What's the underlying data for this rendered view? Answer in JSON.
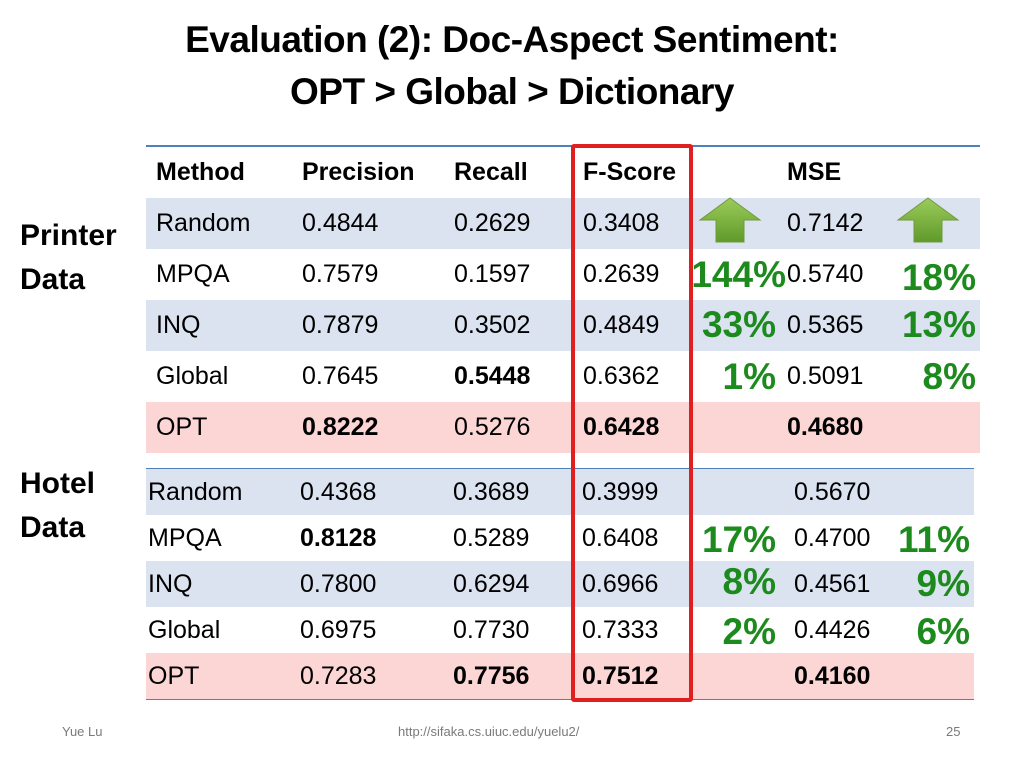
{
  "title": {
    "line1": "Evaluation (2): Doc-Aspect Sentiment:",
    "line2": "OPT > Global > Dictionary"
  },
  "side_labels": {
    "printer_line1": "Printer",
    "printer_line2": "Data",
    "hotel_line1": "Hotel",
    "hotel_line2": "Data"
  },
  "printer_table": {
    "headers": [
      "Method",
      "Precision",
      "Recall",
      "F-Score",
      "MSE"
    ],
    "rows": [
      {
        "method": "Random",
        "precision": "0.4844",
        "recall": "0.2629",
        "fscore": "0.3408",
        "mse": "0.7142"
      },
      {
        "method": "MPQA",
        "precision": "0.7579",
        "recall": "0.1597",
        "fscore": "0.2639",
        "mse": "0.5740"
      },
      {
        "method": "INQ",
        "precision": "0.7879",
        "recall": "0.3502",
        "fscore": "0.4849",
        "mse": "0.5365"
      },
      {
        "method": "Global",
        "precision": "0.7645",
        "recall": "0.5448",
        "fscore": "0.6362",
        "mse": "0.5091"
      },
      {
        "method": "OPT",
        "precision": "0.8222",
        "recall": "0.5276",
        "fscore": "0.6428",
        "mse": "0.4680"
      }
    ],
    "fscore_gains": [
      "144%",
      "33%",
      "1%"
    ],
    "mse_gains": [
      "18%",
      "13%",
      "8%"
    ]
  },
  "hotel_table": {
    "rows": [
      {
        "method": "Random",
        "precision": "0.4368",
        "recall": "0.3689",
        "fscore": "0.3999",
        "mse": "0.5670"
      },
      {
        "method": "MPQA",
        "precision": "0.8128",
        "recall": "0.5289",
        "fscore": "0.6408",
        "mse": "0.4700"
      },
      {
        "method": "INQ",
        "precision": "0.7800",
        "recall": "0.6294",
        "fscore": "0.6966",
        "mse": "0.4561"
      },
      {
        "method": "Global",
        "precision": "0.6975",
        "recall": "0.7730",
        "fscore": "0.7333",
        "mse": "0.4426"
      },
      {
        "method": "OPT",
        "precision": "0.7283",
        "recall": "0.7756",
        "fscore": "0.7512",
        "mse": "0.4160"
      }
    ],
    "fscore_gains": [
      "17%",
      "8%",
      "2%"
    ],
    "mse_gains": [
      "11%",
      "9%",
      "6%"
    ]
  },
  "footer": {
    "author": "Yue Lu",
    "url": "http://sifaka.cs.uiuc.edu/yuelu2/",
    "page_number": "25"
  },
  "colors": {
    "highlight_box": "#e02020",
    "gain_text": "#1d8a1d",
    "row_blue": "#dbe3f1",
    "row_pink": "#fcd5d5",
    "arrow": "green-up-arrow"
  }
}
